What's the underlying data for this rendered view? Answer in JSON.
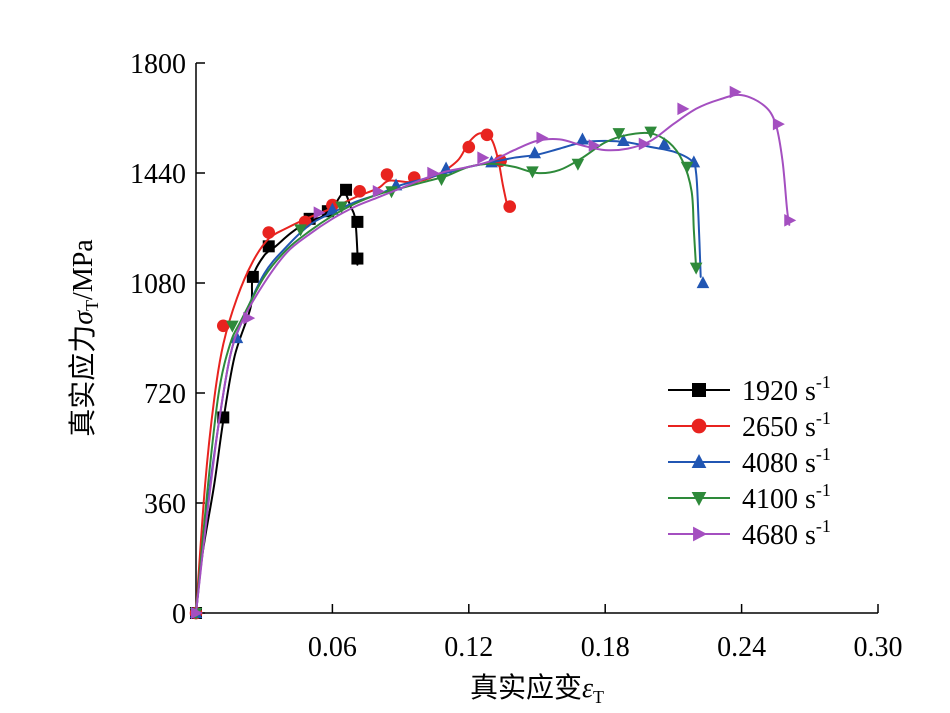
{
  "chart_data": {
    "type": "line",
    "title": "",
    "xlabel": "真实应变",
    "xlabel_symbol": "ε",
    "xlabel_subscript": "T",
    "ylabel": "真实应力",
    "ylabel_symbol": "σ",
    "ylabel_subscript": "T",
    "ylabel_unit": "/MPa",
    "xlim": [
      0,
      0.3
    ],
    "ylim": [
      0,
      1800
    ],
    "xticks": [
      0.06,
      0.12,
      0.18,
      0.24,
      0.3
    ],
    "xtick_labels": [
      "0.06",
      "0.12",
      "0.18",
      "0.24",
      "0.30"
    ],
    "yticks": [
      0,
      360,
      720,
      1080,
      1440,
      1800
    ],
    "ytick_labels": [
      "0",
      "360",
      "720",
      "1080",
      "1440",
      "1800"
    ],
    "grid": false,
    "legend_position": "right",
    "series": [
      {
        "name": "1920 s",
        "name_superscript": "-1",
        "color": "#000000",
        "marker": "square",
        "points": [
          [
            0.0,
            0
          ],
          [
            0.003,
            200
          ],
          [
            0.008,
            420
          ],
          [
            0.012,
            630
          ],
          [
            0.017,
            840
          ],
          [
            0.024,
            1000
          ],
          [
            0.025,
            1100
          ],
          [
            0.03,
            1170
          ],
          [
            0.035,
            1200
          ],
          [
            0.042,
            1245
          ],
          [
            0.05,
            1285
          ],
          [
            0.055,
            1295
          ],
          [
            0.06,
            1325
          ],
          [
            0.065,
            1375
          ],
          [
            0.068,
            1330
          ],
          [
            0.07,
            1290
          ],
          [
            0.071,
            1180
          ],
          [
            0.071,
            1140
          ]
        ],
        "marked": [
          [
            0.0,
            0
          ],
          [
            0.012,
            640
          ],
          [
            0.025,
            1100
          ],
          [
            0.032,
            1200
          ],
          [
            0.05,
            1290
          ],
          [
            0.058,
            1315
          ],
          [
            0.066,
            1385
          ],
          [
            0.071,
            1280
          ],
          [
            0.071,
            1160
          ]
        ]
      },
      {
        "name": "2650 s",
        "name_superscript": "-1",
        "color": "#e8231f",
        "marker": "circle",
        "points": [
          [
            0.0,
            0
          ],
          [
            0.004,
            420
          ],
          [
            0.008,
            700
          ],
          [
            0.012,
            880
          ],
          [
            0.018,
            1030
          ],
          [
            0.025,
            1150
          ],
          [
            0.032,
            1225
          ],
          [
            0.04,
            1260
          ],
          [
            0.05,
            1295
          ],
          [
            0.06,
            1325
          ],
          [
            0.07,
            1360
          ],
          [
            0.08,
            1390
          ],
          [
            0.085,
            1415
          ],
          [
            0.095,
            1410
          ],
          [
            0.105,
            1430
          ],
          [
            0.115,
            1480
          ],
          [
            0.12,
            1540
          ],
          [
            0.125,
            1570
          ],
          [
            0.13,
            1550
          ],
          [
            0.133,
            1480
          ],
          [
            0.135,
            1400
          ],
          [
            0.137,
            1330
          ]
        ],
        "marked": [
          [
            0.0,
            0
          ],
          [
            0.012,
            940
          ],
          [
            0.032,
            1245
          ],
          [
            0.048,
            1280
          ],
          [
            0.06,
            1335
          ],
          [
            0.072,
            1380
          ],
          [
            0.084,
            1435
          ],
          [
            0.096,
            1425
          ],
          [
            0.12,
            1525
          ],
          [
            0.128,
            1565
          ],
          [
            0.134,
            1480
          ],
          [
            0.138,
            1330
          ]
        ]
      },
      {
        "name": "4080 s",
        "name_superscript": "-1",
        "color": "#2156b3",
        "marker": "triangle-up",
        "points": [
          [
            0.0,
            0
          ],
          [
            0.005,
            350
          ],
          [
            0.01,
            620
          ],
          [
            0.015,
            840
          ],
          [
            0.02,
            950
          ],
          [
            0.03,
            1110
          ],
          [
            0.04,
            1200
          ],
          [
            0.05,
            1270
          ],
          [
            0.06,
            1310
          ],
          [
            0.07,
            1345
          ],
          [
            0.08,
            1370
          ],
          [
            0.09,
            1400
          ],
          [
            0.1,
            1420
          ],
          [
            0.11,
            1440
          ],
          [
            0.12,
            1460
          ],
          [
            0.13,
            1475
          ],
          [
            0.14,
            1490
          ],
          [
            0.15,
            1500
          ],
          [
            0.16,
            1520
          ],
          [
            0.17,
            1540
          ],
          [
            0.18,
            1545
          ],
          [
            0.19,
            1540
          ],
          [
            0.2,
            1525
          ],
          [
            0.21,
            1510
          ],
          [
            0.218,
            1480
          ],
          [
            0.22,
            1440
          ],
          [
            0.221,
            1300
          ],
          [
            0.222,
            1100
          ]
        ],
        "marked": [
          [
            0.0,
            0
          ],
          [
            0.018,
            900
          ],
          [
            0.06,
            1320
          ],
          [
            0.088,
            1400
          ],
          [
            0.11,
            1455
          ],
          [
            0.13,
            1475
          ],
          [
            0.149,
            1505
          ],
          [
            0.17,
            1550
          ],
          [
            0.188,
            1545
          ],
          [
            0.206,
            1535
          ],
          [
            0.219,
            1475
          ],
          [
            0.223,
            1080
          ]
        ]
      },
      {
        "name": "4100 s",
        "name_superscript": "-1",
        "color": "#2e8a3a",
        "marker": "triangle-down",
        "points": [
          [
            0.0,
            0
          ],
          [
            0.005,
            400
          ],
          [
            0.01,
            720
          ],
          [
            0.015,
            880
          ],
          [
            0.02,
            960
          ],
          [
            0.03,
            1100
          ],
          [
            0.04,
            1190
          ],
          [
            0.05,
            1250
          ],
          [
            0.06,
            1300
          ],
          [
            0.07,
            1340
          ],
          [
            0.08,
            1370
          ],
          [
            0.09,
            1390
          ],
          [
            0.1,
            1410
          ],
          [
            0.11,
            1430
          ],
          [
            0.12,
            1460
          ],
          [
            0.13,
            1470
          ],
          [
            0.14,
            1460
          ],
          [
            0.15,
            1440
          ],
          [
            0.16,
            1450
          ],
          [
            0.17,
            1490
          ],
          [
            0.18,
            1540
          ],
          [
            0.19,
            1565
          ],
          [
            0.2,
            1570
          ],
          [
            0.208,
            1540
          ],
          [
            0.214,
            1480
          ],
          [
            0.218,
            1380
          ],
          [
            0.219,
            1250
          ],
          [
            0.22,
            1130
          ]
        ],
        "marked": [
          [
            0.0,
            0
          ],
          [
            0.016,
            940
          ],
          [
            0.046,
            1255
          ],
          [
            0.064,
            1330
          ],
          [
            0.086,
            1380
          ],
          [
            0.108,
            1420
          ],
          [
            0.148,
            1445
          ],
          [
            0.168,
            1470
          ],
          [
            0.186,
            1570
          ],
          [
            0.2,
            1575
          ],
          [
            0.216,
            1460
          ],
          [
            0.22,
            1130
          ]
        ]
      },
      {
        "name": "4680 s",
        "name_superscript": "-1",
        "color": "#a44fc0",
        "marker": "triangle-right",
        "points": [
          [
            0.0,
            0
          ],
          [
            0.005,
            330
          ],
          [
            0.01,
            620
          ],
          [
            0.015,
            840
          ],
          [
            0.02,
            950
          ],
          [
            0.03,
            1080
          ],
          [
            0.04,
            1180
          ],
          [
            0.05,
            1240
          ],
          [
            0.06,
            1290
          ],
          [
            0.07,
            1330
          ],
          [
            0.08,
            1360
          ],
          [
            0.09,
            1390
          ],
          [
            0.1,
            1420
          ],
          [
            0.11,
            1445
          ],
          [
            0.12,
            1460
          ],
          [
            0.13,
            1480
          ],
          [
            0.14,
            1515
          ],
          [
            0.15,
            1545
          ],
          [
            0.16,
            1550
          ],
          [
            0.17,
            1530
          ],
          [
            0.18,
            1515
          ],
          [
            0.19,
            1520
          ],
          [
            0.2,
            1545
          ],
          [
            0.21,
            1600
          ],
          [
            0.22,
            1650
          ],
          [
            0.23,
            1680
          ],
          [
            0.24,
            1695
          ],
          [
            0.25,
            1660
          ],
          [
            0.255,
            1600
          ],
          [
            0.258,
            1480
          ],
          [
            0.26,
            1320
          ],
          [
            0.261,
            1270
          ]
        ],
        "marked": [
          [
            0.0,
            0
          ],
          [
            0.023,
            965
          ],
          [
            0.054,
            1310
          ],
          [
            0.08,
            1380
          ],
          [
            0.104,
            1440
          ],
          [
            0.126,
            1490
          ],
          [
            0.152,
            1555
          ],
          [
            0.175,
            1530
          ],
          [
            0.197,
            1535
          ],
          [
            0.214,
            1650
          ],
          [
            0.237,
            1705
          ],
          [
            0.256,
            1600
          ],
          [
            0.261,
            1285
          ]
        ]
      }
    ]
  }
}
